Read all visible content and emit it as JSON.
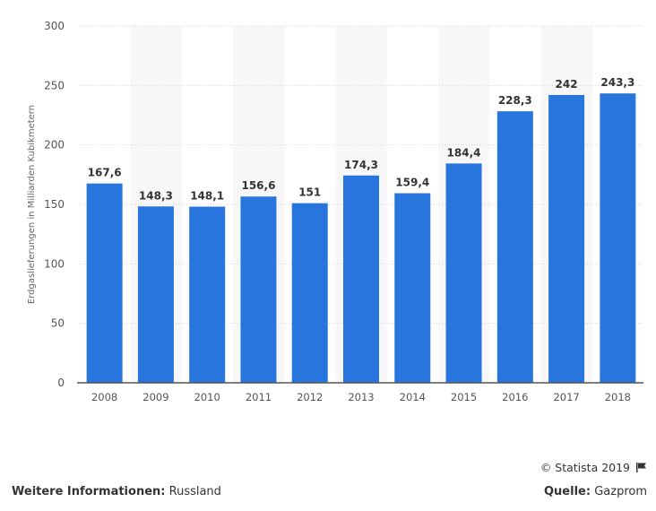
{
  "chart_data": {
    "type": "bar",
    "title": "",
    "xlabel": "",
    "ylabel": "Erdgaslieferungen in Milliarden Kubikmetern",
    "categories": [
      "2008",
      "2009",
      "2010",
      "2011",
      "2012",
      "2013",
      "2014",
      "2015",
      "2016",
      "2017",
      "2018"
    ],
    "values": [
      167.6,
      148.3,
      148.1,
      156.6,
      151,
      174.3,
      159.4,
      184.4,
      228.3,
      242,
      243.3
    ],
    "value_labels": [
      "167,6",
      "148,3",
      "148,1",
      "156,6",
      "151",
      "174,3",
      "159,4",
      "184,4",
      "228,3",
      "242",
      "243,3"
    ],
    "ylim": [
      0,
      300
    ],
    "yticks": [
      0,
      50,
      100,
      150,
      200,
      250,
      300
    ],
    "grid": true,
    "bar_color": "#2876dd",
    "alt_band_color": "#f7f7f7"
  },
  "footer": {
    "copyright": "© Statista 2019",
    "flag_icon": "flag-icon",
    "more_info_label": "Weitere Informationen:",
    "more_info_value": "Russland",
    "source_label": "Quelle:",
    "source_value": "Gazprom"
  }
}
